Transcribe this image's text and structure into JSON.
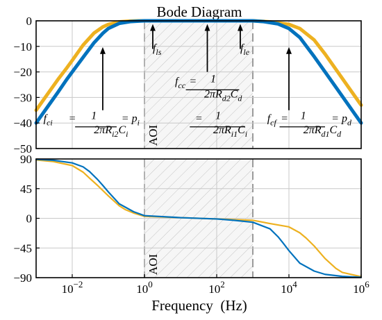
{
  "chart_data": [
    {
      "type": "line",
      "title": "Bode Diagram",
      "xscale": "log",
      "xlim": [
        0.001,
        1000000
      ],
      "ylim": [
        -50,
        0
      ],
      "yticks": [
        "0",
        "-10",
        "-20",
        "-30",
        "-40",
        "-50"
      ],
      "grid": true,
      "shaded_region": {
        "label": "AOI",
        "x_range": [
          1,
          1000
        ]
      },
      "series": [
        {
          "color": "#0072BD",
          "x": [
            0.001,
            0.002,
            0.004,
            0.007,
            0.01,
            0.02,
            0.04,
            0.07,
            0.1,
            0.2,
            0.4,
            0.7,
            1,
            10,
            100,
            1000,
            2000,
            5000,
            10000,
            20000,
            50000,
            100000,
            200000,
            500000,
            1000000
          ],
          "y": [
            -40,
            -34,
            -28,
            -23,
            -20,
            -14.3,
            -8.6,
            -4.9,
            -3,
            -1,
            -0.3,
            -0.1,
            0,
            0,
            0,
            0,
            -0.3,
            -1.2,
            -3,
            -6.5,
            -14,
            -20,
            -26,
            -34,
            -40
          ]
        },
        {
          "color": "#EDB120",
          "x": [
            0.001,
            0.002,
            0.004,
            0.007,
            0.01,
            0.02,
            0.04,
            0.07,
            0.1,
            0.2,
            0.4,
            0.7,
            1,
            10,
            100,
            1000,
            3000,
            10000,
            20000,
            50000,
            100000,
            200000,
            500000,
            1000000
          ],
          "y": [
            -35,
            -29,
            -23,
            -18.5,
            -15.5,
            -9.5,
            -4.8,
            -2.4,
            -1.4,
            -0.4,
            -0.1,
            0,
            0,
            0,
            0,
            0,
            -0.4,
            -1.4,
            -3,
            -7.5,
            -13,
            -19,
            -27,
            -33
          ]
        }
      ],
      "annotations": [
        {
          "text": "f",
          "sub": "ls",
          "x": 1.7,
          "y": -12
        },
        {
          "text": "f",
          "sub": "le",
          "x": 450,
          "y": -12
        },
        {
          "text": "f",
          "sub": "ci",
          "x": 0.0016,
          "y": -39.5
        },
        {
          "text": "=",
          "x": 0.01,
          "y": -39.5
        },
        {
          "text": "1",
          "x": 0.04,
          "y": -38.5
        },
        {
          "text": "2πR",
          "sub": "i2",
          "extra": "C",
          "sub2": "i",
          "x": 0.04,
          "y": -44
        },
        {
          "text": "= p",
          "sub": "i",
          "x": 0.23,
          "y": -39.5
        },
        {
          "text": "f",
          "sub": "cc",
          "x": 7,
          "y": -25
        },
        {
          "text": "=",
          "x": 22,
          "y": -25
        },
        {
          "text": "1",
          "x": 80,
          "y": -24
        },
        {
          "text": "2πR",
          "sub": "d2",
          "extra": "C",
          "sub2": "d",
          "x": 45,
          "y": -30
        },
        {
          "text": "=",
          "x": 32,
          "y": -39.5
        },
        {
          "text": "1",
          "x": 110,
          "y": -38.5
        },
        {
          "text": "2πR",
          "sub": "i1",
          "extra": "C",
          "sub2": "i",
          "x": 80,
          "y": -44
        },
        {
          "text": "f",
          "sub": "cf",
          "x": 2500,
          "y": -39.5
        },
        {
          "text": "=",
          "x": 7500,
          "y": -39.5
        },
        {
          "text": "1",
          "x": 25000,
          "y": -38.5
        },
        {
          "text": "2πR",
          "sub": "d1",
          "extra": "C",
          "sub2": "d",
          "x": 25000,
          "y": -44
        },
        {
          "text": "= p",
          "sub": "d",
          "x": 150000,
          "y": -39.5
        }
      ],
      "arrows": [
        {
          "x": 1.7,
          "y_from": -11,
          "y_to": -1
        },
        {
          "x": 55,
          "y_from": -20,
          "y_to": -1
        },
        {
          "x": 450,
          "y_from": -11,
          "y_to": -1
        },
        {
          "x": 0.07,
          "y_from": -35,
          "y_to": -10
        },
        {
          "x": 10000,
          "y_from": -35,
          "y_to": -10
        }
      ]
    },
    {
      "type": "line",
      "xscale": "log",
      "xlim": [
        0.001,
        1000000
      ],
      "ylim": [
        -90,
        90
      ],
      "yticks": [
        "90",
        "45",
        "0",
        "-45",
        "-90"
      ],
      "xticks": [
        {
          "base": "10",
          "exp": "−2",
          "x": 0.01
        },
        {
          "base": "10",
          "exp": "0",
          "x": 1
        },
        {
          "base": "10",
          "exp": "2",
          "x": 100
        },
        {
          "base": "10",
          "exp": "4",
          "x": 10000
        },
        {
          "base": "10",
          "exp": "6",
          "x": 1000000
        }
      ],
      "xlabel": "Frequency  (Hz)",
      "grid": true,
      "shaded_region": {
        "label": "AOI",
        "x_range": [
          1,
          1000
        ]
      },
      "series": [
        {
          "color": "#0072BD",
          "x": [
            0.001,
            0.003,
            0.01,
            0.02,
            0.03,
            0.05,
            0.07,
            0.1,
            0.2,
            0.5,
            1,
            10,
            100,
            300,
            1000,
            3000,
            5000,
            7000,
            10000,
            20000,
            50000,
            100000,
            300000,
            1000000
          ],
          "y": [
            89.5,
            88,
            84,
            78,
            71,
            59,
            50,
            40,
            22,
            10,
            4,
            1,
            -1,
            -3,
            -6,
            -16,
            -28,
            -38,
            -49,
            -68,
            -80,
            -85,
            -88,
            -89.5
          ]
        },
        {
          "color": "#EDB120",
          "x": [
            0.001,
            0.003,
            0.01,
            0.02,
            0.03,
            0.05,
            0.1,
            0.2,
            0.3,
            0.5,
            1,
            10,
            100,
            1000,
            3000,
            10000,
            20000,
            30000,
            50000,
            100000,
            200000,
            300000,
            1000000
          ],
          "y": [
            88.5,
            86,
            80,
            70,
            61,
            50,
            34,
            19,
            13,
            8,
            3,
            1,
            -1,
            -3,
            -8,
            -13,
            -22,
            -30,
            -42,
            -61,
            -76,
            -82,
            -88.5
          ]
        }
      ]
    }
  ]
}
